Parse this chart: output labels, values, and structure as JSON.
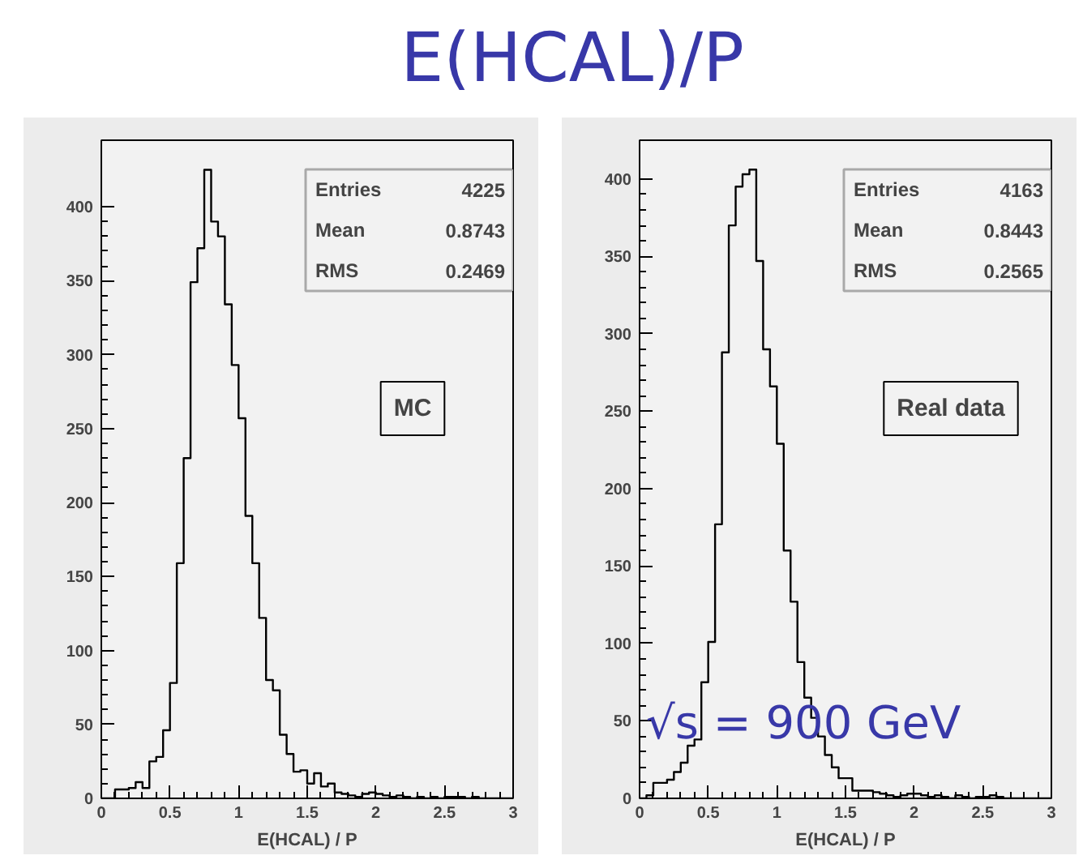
{
  "chart_data": [
    {
      "type": "histogram",
      "title": "E(HCAL)/P",
      "xlabel": "E(HCAL) / P",
      "bins": [
        0,
        0.05,
        0.1,
        0.15,
        0.2,
        0.25,
        0.3,
        0.35,
        0.4,
        0.45,
        0.5,
        0.55,
        0.6,
        0.65,
        0.7,
        0.75,
        0.8,
        0.85,
        0.9,
        0.95,
        1.0,
        1.05,
        1.1,
        1.15,
        1.2,
        1.25,
        1.3,
        1.35,
        1.4,
        1.45,
        1.5,
        1.55,
        1.6,
        1.65,
        1.7,
        1.75,
        1.8,
        1.85,
        1.9,
        1.95,
        2.0,
        2.05,
        2.1,
        2.15,
        2.2,
        2.25,
        2.3,
        2.35,
        2.4,
        2.45,
        2.5,
        2.55,
        2.6,
        2.65,
        2.7,
        2.75,
        2.8,
        2.85,
        2.9,
        2.95,
        3.0
      ],
      "values": [
        0,
        0,
        6,
        6,
        7,
        11,
        7,
        25,
        28,
        46,
        78,
        159,
        230,
        349,
        372,
        425,
        390,
        380,
        334,
        293,
        257,
        191,
        159,
        122,
        80,
        73,
        43,
        30,
        18,
        19,
        10,
        17,
        8,
        10,
        4,
        3,
        2,
        1,
        3,
        4,
        3,
        2,
        1,
        2,
        1,
        0,
        1,
        0,
        1,
        0,
        1,
        1,
        1,
        0,
        1,
        0,
        0,
        0,
        0,
        0
      ],
      "color": "#000000",
      "xlim": [
        0,
        3
      ],
      "xticks": [
        0,
        0.5,
        1,
        1.5,
        2,
        2.5,
        3
      ],
      "ylim": [
        0,
        445
      ],
      "yticks": [
        0,
        50,
        100,
        150,
        200,
        250,
        300,
        350,
        400
      ],
      "grid": false,
      "annotations": [
        "Entries",
        "4225",
        "Mean",
        "0.8743",
        "RMS",
        "0.2469",
        "MC"
      ]
    },
    {
      "type": "histogram",
      "xlabel": "E(HCAL) / P",
      "bins": [
        0,
        0.05,
        0.1,
        0.15,
        0.2,
        0.25,
        0.3,
        0.35,
        0.4,
        0.45,
        0.5,
        0.55,
        0.6,
        0.65,
        0.7,
        0.75,
        0.8,
        0.85,
        0.9,
        0.95,
        1.0,
        1.05,
        1.1,
        1.15,
        1.2,
        1.25,
        1.3,
        1.35,
        1.4,
        1.45,
        1.5,
        1.55,
        1.6,
        1.65,
        1.7,
        1.75,
        1.8,
        1.85,
        1.9,
        1.95,
        2.0,
        2.05,
        2.1,
        2.15,
        2.2,
        2.25,
        2.3,
        2.35,
        2.4,
        2.45,
        2.5,
        2.55,
        2.6,
        2.65,
        2.7,
        2.75,
        2.8,
        2.85,
        2.9,
        2.95,
        3.0
      ],
      "values": [
        0,
        2,
        10,
        10,
        12,
        17,
        23,
        34,
        38,
        75,
        101,
        177,
        288,
        370,
        395,
        403,
        406,
        347,
        290,
        266,
        229,
        160,
        127,
        88,
        65,
        52,
        40,
        28,
        20,
        13,
        13,
        5,
        5,
        5,
        4,
        3,
        2,
        1,
        2,
        3,
        3,
        2,
        1,
        2,
        1,
        0,
        2,
        1,
        0,
        1,
        1,
        2,
        1,
        0,
        0,
        0,
        0,
        0,
        0,
        0
      ],
      "color": "#000000",
      "xlim": [
        0,
        3
      ],
      "xticks": [
        0,
        0.5,
        1,
        1.5,
        2,
        2.5,
        3
      ],
      "ylim": [
        0,
        425
      ],
      "yticks": [
        0,
        50,
        100,
        150,
        200,
        250,
        300,
        350,
        400
      ],
      "grid": false,
      "annotations": [
        "Entries",
        "4163",
        "Mean",
        "0.8443",
        "RMS",
        "0.2565",
        "Real data",
        "√s = 900 GeV"
      ]
    }
  ]
}
